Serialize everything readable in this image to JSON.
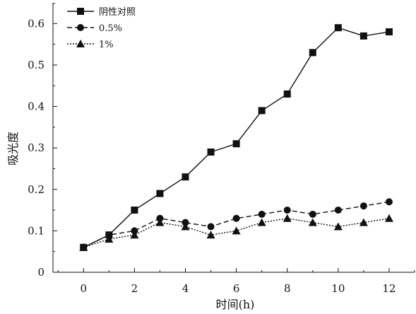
{
  "chart_data": {
    "type": "line",
    "title": "",
    "xlabel": "时间(h)",
    "ylabel": "吸光度",
    "xlim": [
      -1.2,
      13
    ],
    "ylim": [
      0,
      0.65
    ],
    "xticks": [
      0,
      2,
      4,
      6,
      8,
      10,
      12
    ],
    "yticks": [
      0,
      0.1,
      0.2,
      0.3,
      0.4,
      0.5,
      0.6
    ],
    "ytick_labels": [
      "0",
      "0.1",
      "0.2",
      "0.3",
      "0.4",
      "0.5",
      "0.6"
    ],
    "grid": false,
    "legend_position": "top-left",
    "x": [
      0,
      1,
      2,
      3,
      4,
      5,
      6,
      7,
      8,
      9,
      10,
      11,
      12
    ],
    "series": [
      {
        "name": "阴性对照",
        "marker": "square",
        "line": "solid",
        "values": [
          0.06,
          0.09,
          0.15,
          0.19,
          0.23,
          0.29,
          0.31,
          0.39,
          0.43,
          0.53,
          0.59,
          0.57,
          0.58
        ]
      },
      {
        "name": "0.5%",
        "marker": "circle",
        "line": "dashed",
        "values": [
          0.06,
          0.09,
          0.1,
          0.13,
          0.12,
          0.11,
          0.13,
          0.14,
          0.15,
          0.14,
          0.15,
          0.16,
          0.17
        ]
      },
      {
        "name": "1%",
        "marker": "triangle",
        "line": "dotted",
        "values": [
          0.06,
          0.08,
          0.09,
          0.12,
          0.11,
          0.09,
          0.1,
          0.12,
          0.13,
          0.12,
          0.11,
          0.12,
          0.13
        ]
      }
    ]
  },
  "colors": {
    "line": "#111111",
    "background": "#ffffff"
  }
}
